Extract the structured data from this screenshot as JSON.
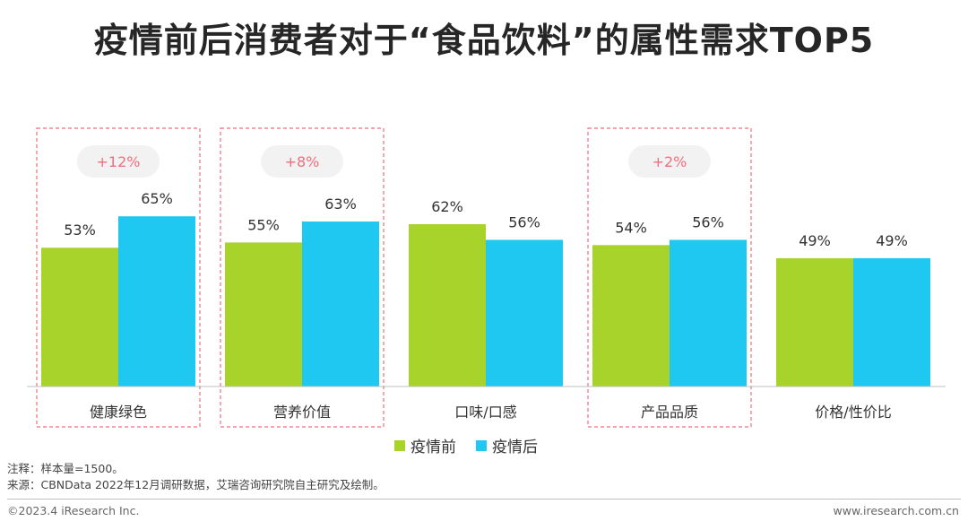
{
  "title": "疫情前后消费者对于“食品饮料”的属性需求TOP5",
  "chart_data": {
    "type": "bar",
    "categories": [
      "健康绿色",
      "营养价值",
      "口味/口感",
      "产品品质",
      "价格/性价比"
    ],
    "series": [
      {
        "name": "疫情前",
        "values": [
          53,
          55,
          62,
          54,
          49
        ],
        "color": "#A8D32A"
      },
      {
        "name": "疫情后",
        "values": [
          65,
          63,
          56,
          56,
          49
        ],
        "color": "#1EC8F0"
      }
    ],
    "value_suffix": "%",
    "ylim": [
      0,
      100
    ],
    "highlights": [
      {
        "category_index": 0,
        "label": "+12%"
      },
      {
        "category_index": 1,
        "label": "+8%"
      },
      {
        "category_index": 3,
        "label": "+2%"
      }
    ],
    "legend_position": "bottom",
    "grid": false,
    "highlight_color": "#F06E7E",
    "pill_color": "#F2F2F2"
  },
  "notes": {
    "line1": "注释：样本量=1500。",
    "line2": "来源：CBNData 2022年12月调研数据，艾瑞咨询研究院自主研究及绘制。"
  },
  "footer": {
    "copyright": "©2023.4 iResearch Inc.",
    "website": "www.iresearch.com.cn"
  }
}
